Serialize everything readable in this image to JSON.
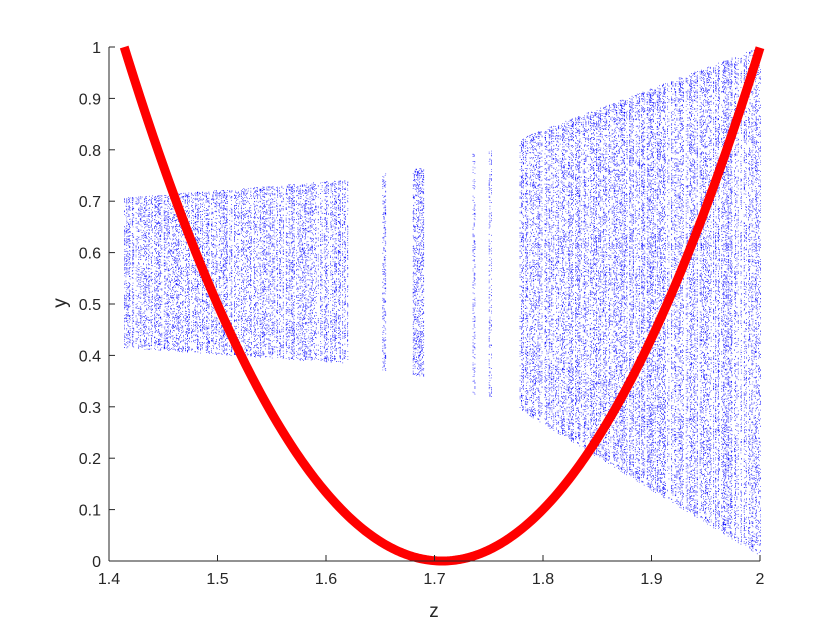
{
  "chart_data": {
    "type": "scatter",
    "title": "",
    "xlabel": "z",
    "ylabel": "y",
    "xlim": [
      1.4,
      2.0
    ],
    "ylim": [
      0,
      1
    ],
    "xticks": [
      "1.4",
      "1.5",
      "1.6",
      "1.7",
      "1.8",
      "1.9",
      "2"
    ],
    "yticks": [
      "0",
      "0.1",
      "0.2",
      "0.3",
      "0.4",
      "0.5",
      "0.6",
      "0.7",
      "0.8",
      "0.9",
      "1"
    ],
    "grid": false,
    "legend": "none",
    "series": [
      {
        "type": "scatter",
        "color": "#0000ff",
        "description_bands": [
          {
            "z_range": [
              1.414,
              1.62
            ],
            "y_low_range": [
              0.415,
              0.385
            ],
            "y_high_range": [
              0.707,
              0.742
            ]
          },
          {
            "z_range": [
              1.652,
              1.655
            ],
            "y_low_range": [
              0.37,
              0.37
            ],
            "y_high_range": [
              0.752,
              0.756
            ]
          },
          {
            "z_range": [
              1.68,
              1.69
            ],
            "y_low_range": [
              0.362,
              0.36
            ],
            "y_high_range": [
              0.762,
              0.766
            ]
          },
          {
            "z_range": [
              1.735,
              1.737
            ],
            "y_low_range": [
              0.325,
              0.325
            ],
            "y_high_range": [
              0.795,
              0.797
            ]
          },
          {
            "z_range": [
              1.75,
              1.752
            ],
            "y_low_range": [
              0.318,
              0.318
            ],
            "y_high_range": [
              0.8,
              0.8
            ]
          },
          {
            "z_range": [
              1.778,
              2.0
            ],
            "y_low_range": [
              0.295,
              0.01
            ],
            "y_high_range": [
              0.822,
              1.0
            ]
          }
        ]
      },
      {
        "type": "line",
        "color": "#ff0000",
        "x_range": [
          1.414,
          2.0
        ],
        "vertex": [
          1.7071,
          0.0
        ]
      }
    ]
  }
}
